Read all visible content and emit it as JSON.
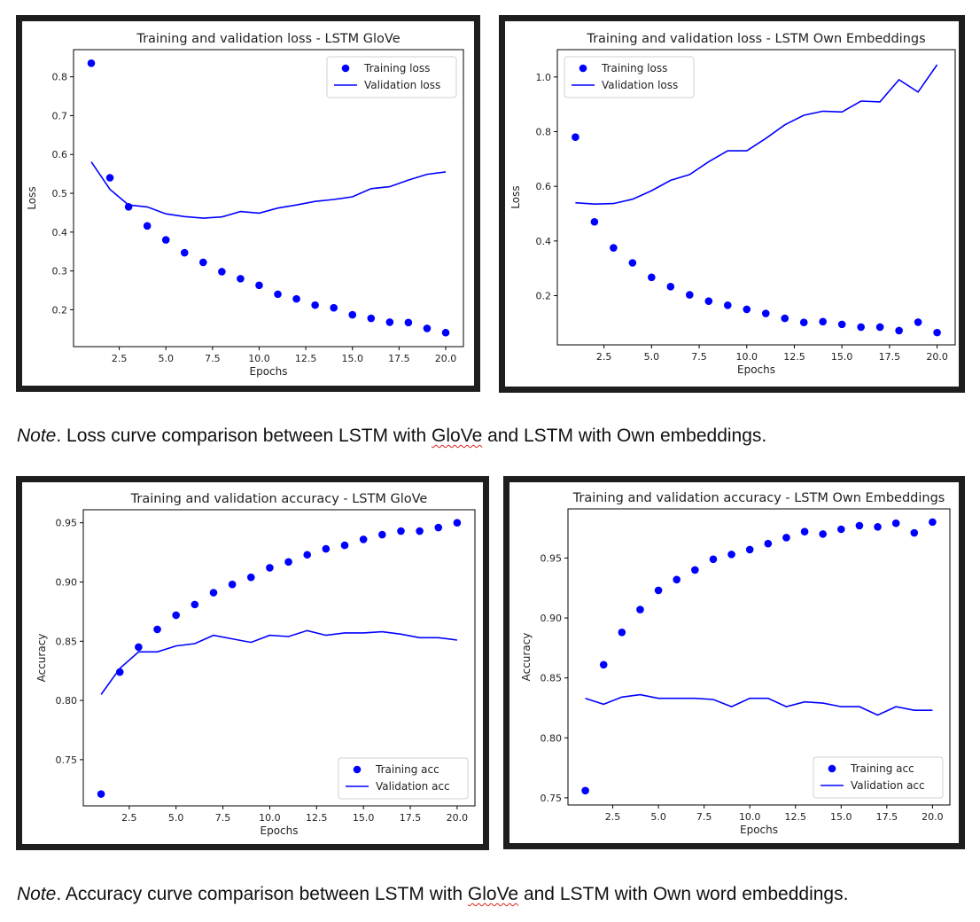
{
  "chart_data": [
    {
      "type": "line",
      "title": "Training and validation loss - LSTM GloVe",
      "xlabel": "Epochs",
      "ylabel": "Loss",
      "xlim": [
        0.05,
        20.95
      ],
      "ylim": [
        0.105,
        0.87
      ],
      "xticks": [
        2.5,
        5.0,
        7.5,
        10.0,
        12.5,
        15.0,
        17.5,
        20.0
      ],
      "xtick_labels": [
        "2.5",
        "5.0",
        "7.5",
        "10.0",
        "12.5",
        "15.0",
        "17.5",
        "20.0"
      ],
      "yticks": [
        0.2,
        0.3,
        0.4,
        0.5,
        0.6,
        0.7,
        0.8
      ],
      "ytick_labels": [
        "0.2",
        "0.3",
        "0.4",
        "0.5",
        "0.6",
        "0.7",
        "0.8"
      ],
      "legend_position": "top-right",
      "x": [
        1,
        2,
        3,
        4,
        5,
        6,
        7,
        8,
        9,
        10,
        11,
        12,
        13,
        14,
        15,
        16,
        17,
        18,
        19,
        20
      ],
      "series": [
        {
          "name": "Training loss",
          "style": "points",
          "color": "#0000ff",
          "values": [
            0.835,
            0.54,
            0.465,
            0.416,
            0.38,
            0.347,
            0.322,
            0.298,
            0.28,
            0.263,
            0.24,
            0.228,
            0.212,
            0.205,
            0.187,
            0.178,
            0.168,
            0.167,
            0.152,
            0.141
          ]
        },
        {
          "name": "Validation loss",
          "style": "line",
          "color": "#0000ff",
          "values": [
            0.581,
            0.51,
            0.47,
            0.465,
            0.447,
            0.44,
            0.436,
            0.439,
            0.453,
            0.449,
            0.462,
            0.47,
            0.479,
            0.484,
            0.491,
            0.512,
            0.517,
            0.534,
            0.549,
            0.555
          ]
        }
      ]
    },
    {
      "type": "line",
      "title": "Training and validation loss - LSTM Own Embeddings",
      "xlabel": "Epochs",
      "ylabel": "Loss",
      "xlim": [
        0.05,
        20.95
      ],
      "ylim": [
        0.02,
        1.1
      ],
      "xticks": [
        2.5,
        5.0,
        7.5,
        10.0,
        12.5,
        15.0,
        17.5,
        20.0
      ],
      "xtick_labels": [
        "2.5",
        "5.0",
        "7.5",
        "10.0",
        "12.5",
        "15.0",
        "17.5",
        "20.0"
      ],
      "yticks": [
        0.2,
        0.4,
        0.6,
        0.8,
        1.0
      ],
      "ytick_labels": [
        "0.2",
        "0.4",
        "0.6",
        "0.8",
        "1.0"
      ],
      "legend_position": "top-left",
      "x": [
        1,
        2,
        3,
        4,
        5,
        6,
        7,
        8,
        9,
        10,
        11,
        12,
        13,
        14,
        15,
        16,
        17,
        18,
        19,
        20
      ],
      "series": [
        {
          "name": "Training loss",
          "style": "points",
          "color": "#0000ff",
          "values": [
            0.78,
            0.47,
            0.375,
            0.32,
            0.267,
            0.233,
            0.203,
            0.18,
            0.165,
            0.15,
            0.135,
            0.117,
            0.102,
            0.105,
            0.095,
            0.085,
            0.085,
            0.072,
            0.103,
            0.065
          ]
        },
        {
          "name": "Validation loss",
          "style": "line",
          "color": "#0000ff",
          "values": [
            0.54,
            0.535,
            0.537,
            0.553,
            0.584,
            0.622,
            0.643,
            0.69,
            0.73,
            0.73,
            0.775,
            0.825,
            0.86,
            0.875,
            0.872,
            0.912,
            0.909,
            0.99,
            0.945,
            1.045
          ]
        }
      ]
    },
    {
      "type": "line",
      "title": "Training and validation accuracy - LSTM GloVe",
      "xlabel": "Epochs",
      "ylabel": "Accuracy",
      "xlim": [
        0.05,
        20.95
      ],
      "ylim": [
        0.711,
        0.961
      ],
      "xticks": [
        2.5,
        5.0,
        7.5,
        10.0,
        12.5,
        15.0,
        17.5,
        20.0
      ],
      "xtick_labels": [
        "2.5",
        "5.0",
        "7.5",
        "10.0",
        "12.5",
        "15.0",
        "17.5",
        "20.0"
      ],
      "yticks": [
        0.75,
        0.8,
        0.85,
        0.9,
        0.95
      ],
      "ytick_labels": [
        "0.75",
        "0.80",
        "0.85",
        "0.90",
        "0.95"
      ],
      "legend_position": "bottom-right",
      "x": [
        1,
        2,
        3,
        4,
        5,
        6,
        7,
        8,
        9,
        10,
        11,
        12,
        13,
        14,
        15,
        16,
        17,
        18,
        19,
        20
      ],
      "series": [
        {
          "name": "Training acc",
          "style": "points",
          "color": "#0000ff",
          "values": [
            0.721,
            0.824,
            0.845,
            0.86,
            0.872,
            0.881,
            0.891,
            0.898,
            0.904,
            0.912,
            0.917,
            0.923,
            0.928,
            0.931,
            0.936,
            0.94,
            0.943,
            0.943,
            0.946,
            0.95
          ]
        },
        {
          "name": "Validation acc",
          "style": "line",
          "color": "#0000ff",
          "values": [
            0.805,
            0.827,
            0.841,
            0.841,
            0.846,
            0.848,
            0.855,
            0.852,
            0.849,
            0.855,
            0.854,
            0.859,
            0.855,
            0.857,
            0.857,
            0.858,
            0.856,
            0.853,
            0.853,
            0.851
          ]
        }
      ]
    },
    {
      "type": "line",
      "title": "Training and validation accuracy - LSTM Own Embeddings",
      "xlabel": "Epochs",
      "ylabel": "Accuracy",
      "xlim": [
        0.05,
        20.95
      ],
      "ylim": [
        0.744,
        0.991
      ],
      "xticks": [
        2.5,
        5.0,
        7.5,
        10.0,
        12.5,
        15.0,
        17.5,
        20.0
      ],
      "xtick_labels": [
        "2.5",
        "5.0",
        "7.5",
        "10.0",
        "12.5",
        "15.0",
        "17.5",
        "20.0"
      ],
      "yticks": [
        0.75,
        0.8,
        0.85,
        0.9,
        0.95
      ],
      "ytick_labels": [
        "0.75",
        "0.80",
        "0.85",
        "0.90",
        "0.95"
      ],
      "legend_position": "bottom-right",
      "x": [
        1,
        2,
        3,
        4,
        5,
        6,
        7,
        8,
        9,
        10,
        11,
        12,
        13,
        14,
        15,
        16,
        17,
        18,
        19,
        20
      ],
      "series": [
        {
          "name": "Training acc",
          "style": "points",
          "color": "#0000ff",
          "values": [
            0.756,
            0.861,
            0.888,
            0.907,
            0.923,
            0.932,
            0.94,
            0.949,
            0.953,
            0.957,
            0.962,
            0.967,
            0.972,
            0.97,
            0.974,
            0.977,
            0.976,
            0.979,
            0.971,
            0.98
          ]
        },
        {
          "name": "Validation acc",
          "style": "line",
          "color": "#0000ff",
          "values": [
            0.833,
            0.828,
            0.834,
            0.836,
            0.833,
            0.833,
            0.833,
            0.832,
            0.826,
            0.833,
            0.833,
            0.826,
            0.83,
            0.829,
            0.826,
            0.826,
            0.819,
            0.826,
            0.823,
            0.823
          ]
        }
      ]
    }
  ],
  "notes": [
    {
      "lead": "Note",
      "text_before": ". Loss curve comparison between LSTM with ",
      "marked_word": "GloVe",
      "text_after": " and LSTM with Own embeddings."
    },
    {
      "lead": "Note",
      "text_before": ". Accuracy curve comparison between LSTM with ",
      "marked_word": "GloVe",
      "text_after": " and LSTM with Own word embeddings."
    }
  ]
}
